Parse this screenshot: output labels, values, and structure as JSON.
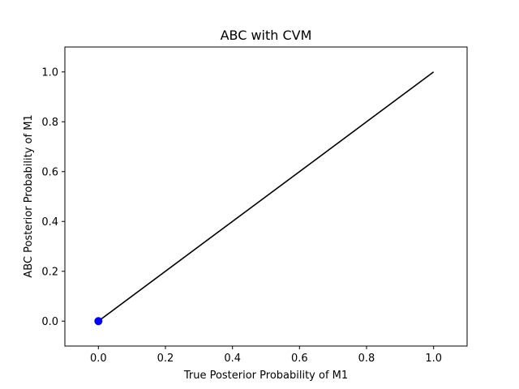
{
  "chart_data": {
    "type": "scatter",
    "title": "ABC with CVM",
    "xlabel": "True Posterior Probability of M1",
    "ylabel": "ABC Posterior Probability of M1",
    "xlim": [
      -0.1,
      1.1
    ],
    "ylim": [
      -0.1,
      1.1
    ],
    "xticks": [
      "0.0",
      "0.2",
      "0.4",
      "0.6",
      "0.8",
      "1.0"
    ],
    "yticks": [
      "0.0",
      "0.2",
      "0.4",
      "0.6",
      "0.8",
      "1.0"
    ],
    "grid": false,
    "reference_line": {
      "x": [
        0,
        1
      ],
      "y": [
        0,
        1
      ],
      "color": "#000000"
    },
    "series": [
      {
        "points": [
          {
            "x": 0.0,
            "y": 0.0
          }
        ],
        "color": "#0000ff"
      }
    ]
  }
}
